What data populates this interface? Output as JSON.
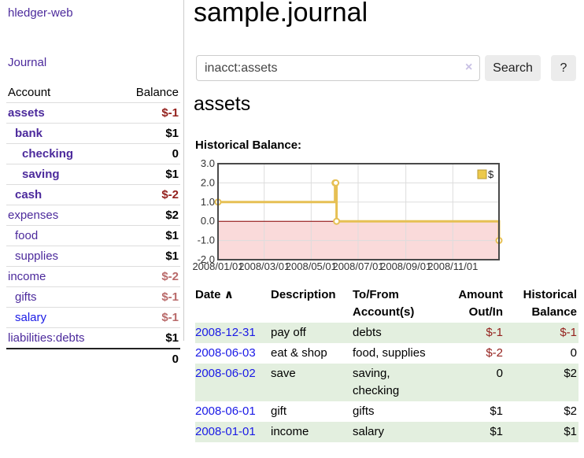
{
  "colors": {
    "link_purple": "#4c2a9c",
    "link_blue": "#1a1ae6",
    "negative_strong": "#94211d",
    "negative_soft": "#b96a6a",
    "row_shade_green": "#e3efdf",
    "chart_line_gold": "#e6c054",
    "negative_region_pink": "#fadada",
    "zero_line_dark_red": "#8b0000"
  },
  "sidebar": {
    "brand": "hledger-web",
    "journal_link": "Journal",
    "accounts_table": {
      "headers": {
        "account": "Account",
        "balance": "Balance"
      },
      "rows": [
        {
          "name": "assets",
          "level": 1,
          "bold": true,
          "color": "purple",
          "balance": "$-1",
          "balance_class": "neg-strong"
        },
        {
          "name": "bank",
          "level": 2,
          "bold": true,
          "color": "purple",
          "balance": "$1",
          "balance_class": ""
        },
        {
          "name": "checking",
          "level": 3,
          "bold": true,
          "color": "purple",
          "balance": "0",
          "balance_class": ""
        },
        {
          "name": "saving",
          "level": 3,
          "bold": true,
          "color": "purple",
          "balance": "$1",
          "balance_class": ""
        },
        {
          "name": "cash",
          "level": 2,
          "bold": true,
          "color": "purple",
          "balance": "$-2",
          "balance_class": "neg-strong"
        },
        {
          "name": "expenses",
          "level": 1,
          "bold": false,
          "color": "purple",
          "balance": "$2",
          "balance_class": ""
        },
        {
          "name": "food",
          "level": 2,
          "bold": false,
          "color": "purple",
          "balance": "$1",
          "balance_class": ""
        },
        {
          "name": "supplies",
          "level": 2,
          "bold": false,
          "color": "purple",
          "balance": "$1",
          "balance_class": ""
        },
        {
          "name": "income",
          "level": 1,
          "bold": false,
          "color": "purple",
          "balance": "$-2",
          "balance_class": "neg-soft"
        },
        {
          "name": "gifts",
          "level": 2,
          "bold": false,
          "color": "purple",
          "balance": "$-1",
          "balance_class": "neg-soft"
        },
        {
          "name": "salary",
          "level": 2,
          "bold": false,
          "color": "blue",
          "balance": "$-1",
          "balance_class": "neg-soft"
        },
        {
          "name": "liabilities:debts",
          "level": 1,
          "bold": false,
          "color": "purple",
          "balance": "$1",
          "balance_class": ""
        }
      ],
      "total": "0"
    }
  },
  "main": {
    "title": "sample.journal",
    "search": {
      "value": "inacct:assets",
      "clear_icon": "×",
      "search_button": "Search",
      "help_button": "?"
    },
    "account_heading": "assets",
    "chart_heading": "Historical Balance:"
  },
  "chart_data": {
    "type": "line",
    "title": "Historical Balance:",
    "legend": [
      "$"
    ],
    "legend_position": "top-right",
    "x_start": "2008-01-01",
    "x_end": "2008-12-31",
    "ylim": [
      -2.0,
      3.0
    ],
    "y_ticks": [
      "3.0",
      "2.0",
      "1.0",
      "0.0",
      "-1.0",
      "-2.0"
    ],
    "x_ticks": [
      {
        "label": "2008/01/01",
        "date": "2008-01-01"
      },
      {
        "label": "2008/03/01",
        "date": "2008-03-01"
      },
      {
        "label": "2008/05/01",
        "date": "2008-05-01"
      },
      {
        "label": "2008/07/01",
        "date": "2008-07-01"
      },
      {
        "label": "2008/09/01",
        "date": "2008-09-01"
      },
      {
        "label": "2008/11/01",
        "date": "2008-11-01"
      }
    ],
    "series": [
      {
        "name": "$",
        "color": "#e6c054",
        "points": [
          {
            "date": "2008-01-01",
            "value": 1
          },
          {
            "date": "2008-06-01",
            "value": 2
          },
          {
            "date": "2008-06-02",
            "value": 2
          },
          {
            "date": "2008-06-03",
            "value": 0
          },
          {
            "date": "2008-12-31",
            "value": -1
          }
        ]
      }
    ],
    "grid": true,
    "negative_region_shaded": true
  },
  "register_table": {
    "headers": {
      "date": "Date",
      "sort_indicator": "∧",
      "description": "Description",
      "account": "To/From Account(s)",
      "amount": "Amount Out/In",
      "balance": "Historical Balance"
    },
    "rows": [
      {
        "date": "2008-12-31",
        "description": "pay off",
        "account": "debts",
        "amount": "$-1",
        "amount_neg": true,
        "balance": "$-1",
        "balance_neg": true,
        "shaded": true
      },
      {
        "date": "2008-06-03",
        "description": "eat & shop",
        "account": "food, supplies",
        "amount": "$-2",
        "amount_neg": true,
        "balance": "0",
        "balance_neg": false,
        "shaded": false
      },
      {
        "date": "2008-06-02",
        "description": "save",
        "account": "saving,\nchecking",
        "amount": "0",
        "amount_neg": false,
        "balance": "$2",
        "balance_neg": false,
        "shaded": true
      },
      {
        "date": "2008-06-01",
        "description": "gift",
        "account": "gifts",
        "amount": "$1",
        "amount_neg": false,
        "balance": "$2",
        "balance_neg": false,
        "shaded": false
      },
      {
        "date": "2008-01-01",
        "description": "income",
        "account": "salary",
        "amount": "$1",
        "amount_neg": false,
        "balance": "$1",
        "balance_neg": false,
        "shaded": true
      }
    ]
  }
}
